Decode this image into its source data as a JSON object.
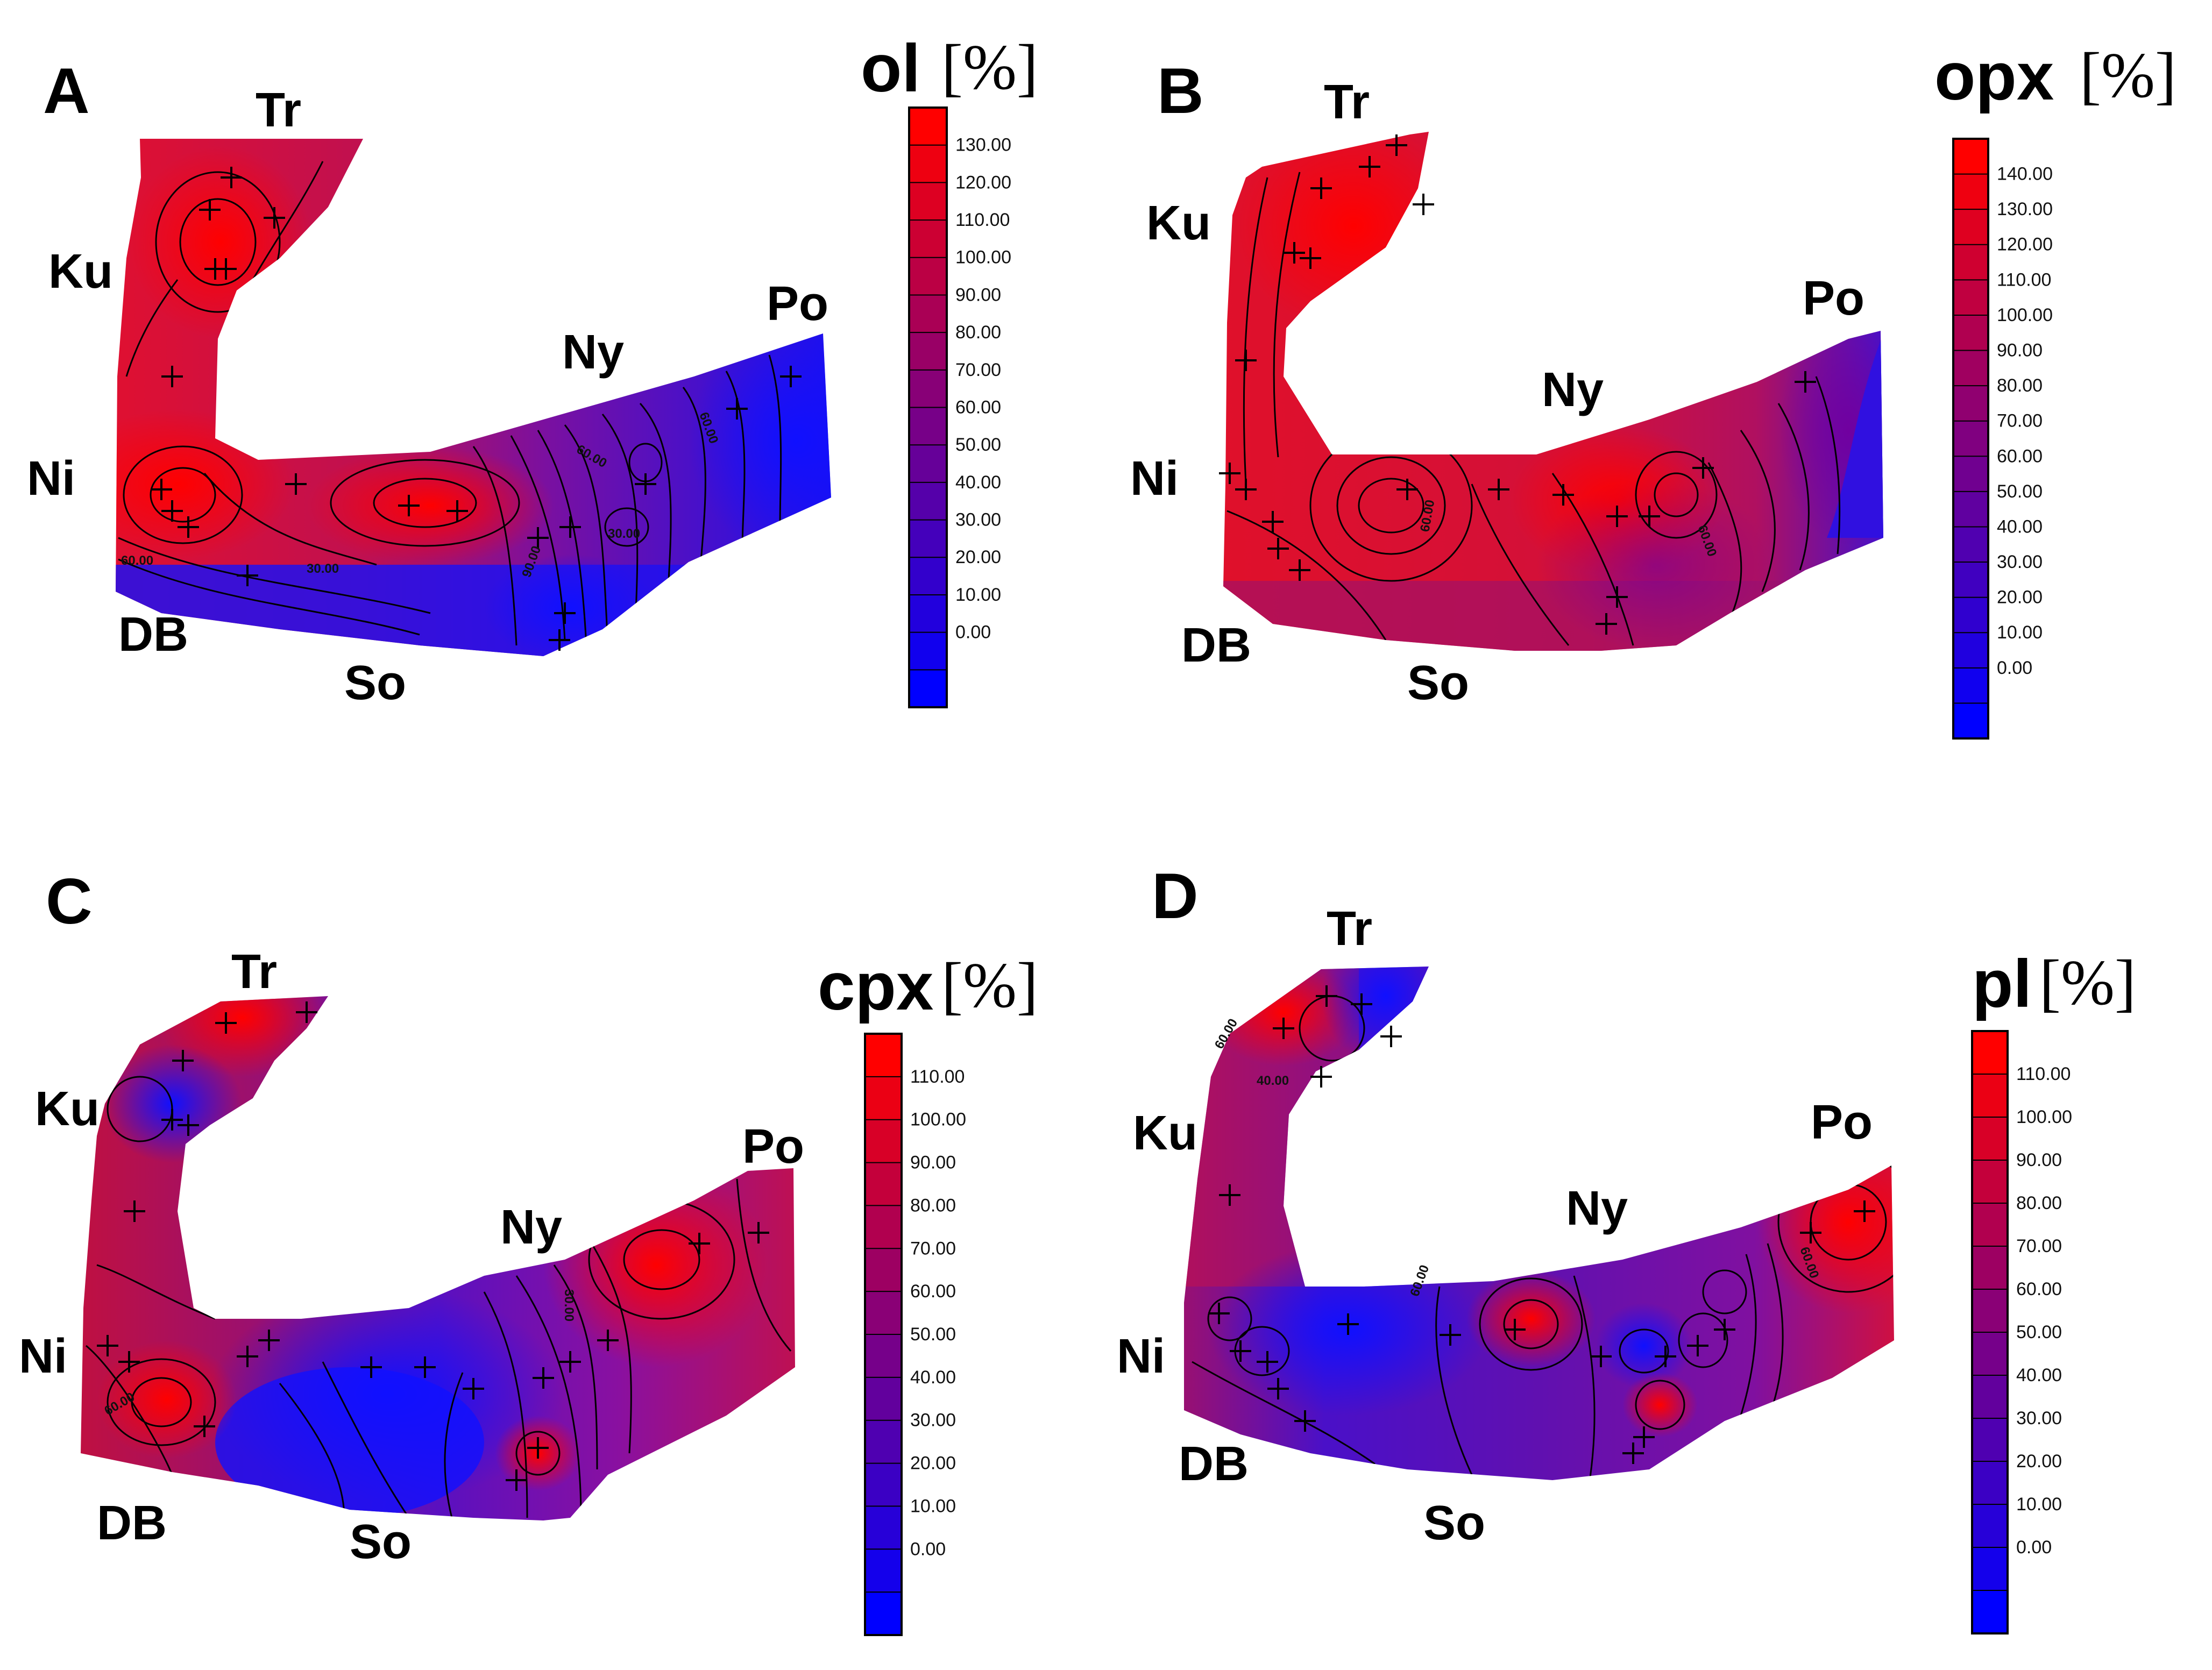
{
  "sites": {
    "tr": "Tr",
    "ku": "Ku",
    "ni": "Ni",
    "db": "DB",
    "so": "So",
    "ny": "Ny",
    "po": "Po"
  },
  "unit": "[%]",
  "colors": {
    "high": "#ff0000",
    "mid": "#800080",
    "low": "#0000ff"
  },
  "panels": [
    {
      "id": "A",
      "mineral": "ol",
      "scale_labels": [
        "130.00",
        "120.00",
        "110.00",
        "100.00",
        "90.00",
        "80.00",
        "70.00",
        "60.00",
        "50.00",
        "40.00",
        "30.00",
        "20.00",
        "10.00",
        "0.00"
      ],
      "contour_labels": [
        "60.00",
        "30.00",
        "60.00",
        "60.00",
        "90.00",
        "30.00"
      ]
    },
    {
      "id": "B",
      "mineral": "opx",
      "scale_labels": [
        "140.00",
        "130.00",
        "120.00",
        "110.00",
        "100.00",
        "90.00",
        "80.00",
        "70.00",
        "60.00",
        "50.00",
        "40.00",
        "30.00",
        "20.00",
        "10.00",
        "0.00"
      ],
      "contour_labels": [
        "60.00",
        "60.00"
      ]
    },
    {
      "id": "C",
      "mineral": "cpx",
      "scale_labels": [
        "110.00",
        "100.00",
        "90.00",
        "80.00",
        "70.00",
        "60.00",
        "50.00",
        "40.00",
        "30.00",
        "20.00",
        "10.00",
        "0.00"
      ],
      "contour_labels": [
        "60.00",
        "30.00"
      ]
    },
    {
      "id": "D",
      "mineral": "pl",
      "scale_labels": [
        "110.00",
        "100.00",
        "90.00",
        "80.00",
        "70.00",
        "60.00",
        "50.00",
        "40.00",
        "30.00",
        "20.00",
        "10.00",
        "0.00"
      ],
      "contour_labels": [
        "60.00",
        "40.00",
        "60.00",
        "60.00"
      ]
    }
  ]
}
